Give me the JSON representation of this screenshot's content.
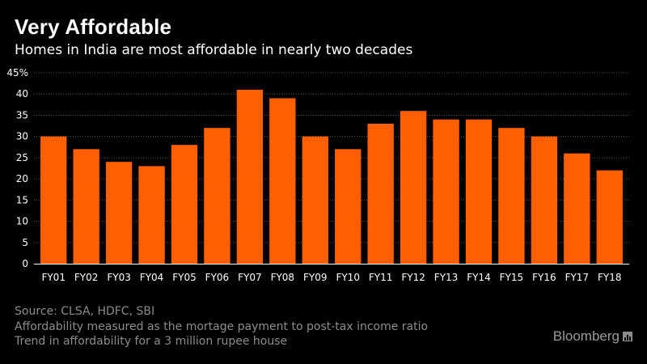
{
  "header": {
    "title": "Very Affordable",
    "subtitle": "Homes in India are most affordable in nearly two decades"
  },
  "footer": {
    "source": "Source: CLSA, HDFC, SBI",
    "note_1": "Affordability measured as the mortage payment to post-tax income ratio",
    "note_2": "Trend in affordability for a 3 million rupee house",
    "brand": "Bloomberg"
  },
  "colors": {
    "background": "#000000",
    "bar": "#ff5f00",
    "grid": "#555555",
    "axis": "#ffffff",
    "text": "#ffffff",
    "note": "#8c8c8c"
  },
  "chart_data": {
    "type": "bar",
    "title": "Very Affordable",
    "subtitle": "Homes in India are most affordable in nearly two decades",
    "xlabel": "",
    "ylabel": "",
    "ylim": [
      0,
      45
    ],
    "yticks": [
      "0",
      "5",
      "10",
      "15",
      "20",
      "25",
      "30",
      "35",
      "40",
      "45%"
    ],
    "grid": true,
    "legend": "none",
    "categories": [
      "FY01",
      "FY02",
      "FY03",
      "FY04",
      "FY05",
      "FY06",
      "FY07",
      "FY08",
      "FY09",
      "FY10",
      "FY11",
      "FY12",
      "FY13",
      "FY14",
      "FY15",
      "FY16",
      "FY17",
      "FY18"
    ],
    "values": [
      30,
      27,
      24,
      23,
      28,
      32,
      41,
      39,
      30,
      27,
      33,
      36,
      34,
      34,
      32,
      30,
      26,
      22
    ]
  }
}
